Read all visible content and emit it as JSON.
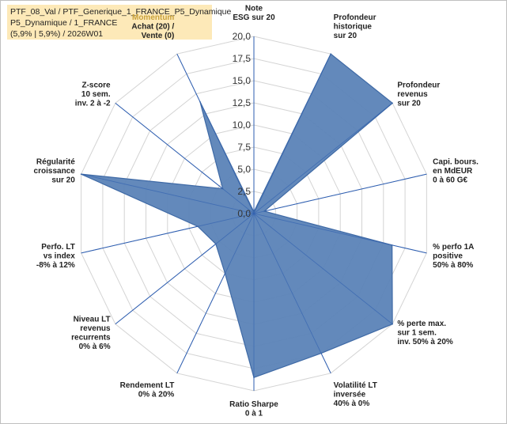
{
  "header": {
    "line1": "PTF_08_Val / PTF_Generique_1_FRANCE_P5_Dynamique",
    "line2": "P5_Dynamique / 1_FRANCE",
    "line3": "(5,9% | 5,9%) / 2026W01"
  },
  "chart_data": {
    "type": "radar",
    "rmax": 20,
    "tick_step": 2.5,
    "tick_labels": [
      "0,0",
      "2,5",
      "5,0",
      "7,5",
      "10,0",
      "12,5",
      "15,0",
      "17,5",
      "20,0"
    ],
    "axes": [
      [
        "Note",
        "ESG sur 20"
      ],
      [
        "Profondeur",
        "historique",
        "sur 20"
      ],
      [
        "Profondeur",
        "revenus",
        "sur 20"
      ],
      [
        "Capi. bours.",
        "en MdEUR",
        "0 à 60 G€"
      ],
      [
        "% perfo 1A",
        "positive",
        "50% à 80%"
      ],
      [
        "% perte max.",
        "sur 1 sem.",
        "inv. 50% à 20%"
      ],
      [
        "Volatilité LT",
        "inversée",
        "40% à 0%"
      ],
      [
        "Ratio Sharpe",
        "0 à 1"
      ],
      [
        "Rendement LT",
        "0% à 20%"
      ],
      [
        "Niveau LT",
        "revenus",
        "recurrents",
        "0% à 6%"
      ],
      [
        "Perfo. LT",
        "vs index",
        "-8% à 12%"
      ],
      [
        "Régularité",
        "croissance",
        "sur 20"
      ],
      [
        "Z-score",
        "10 sem.",
        "inv. 2 à -2"
      ],
      [
        "Momentum",
        "Achat (20) /",
        "Vente (0)"
      ]
    ],
    "highlight_axis_line": "Momentum",
    "highlight_color": "#c9a23c",
    "values": [
      0.2,
      20,
      20,
      1.2,
      16,
      20,
      17.5,
      18.5,
      7.5,
      5.5,
      6.5,
      20,
      4.5,
      14
    ],
    "fill_color": "#5b83b7",
    "stroke_color": "#3f6aa6",
    "axis_color": "#2f5fb0",
    "grid_color": "#d4d4d4"
  }
}
